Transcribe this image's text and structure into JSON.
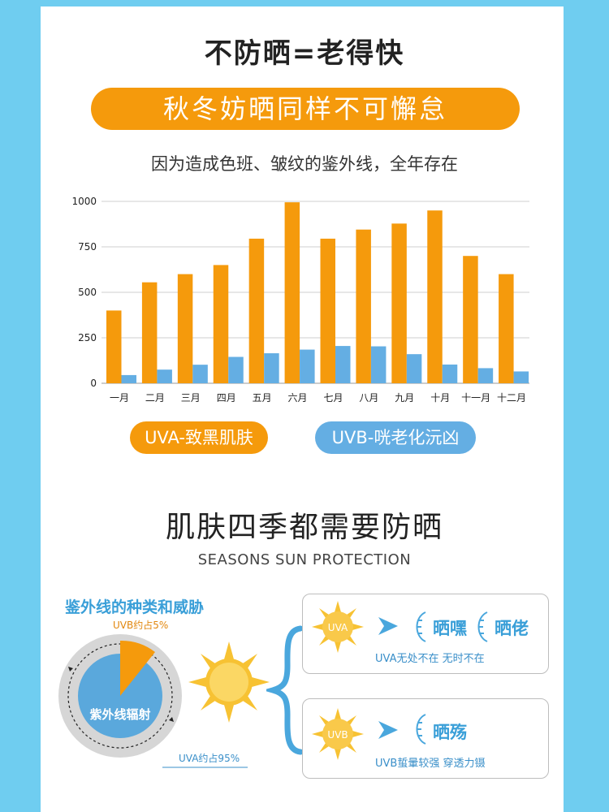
{
  "header": {
    "title": "不防晒=老得快",
    "banner": "秋冬妨晒同样不可懈怠",
    "subtitle": "因为造成色班、皱纹的鉴外线，全年存在"
  },
  "legend": {
    "uva": "UVA-致黑肌肤",
    "uvb": "UVB-咣老化沅凶"
  },
  "section2": {
    "title": "肌肤四季都需要防晒",
    "subtitle": "SEASONS SUN PROTECTION",
    "heading": "鉴外线的种类和威胁"
  },
  "pie": {
    "uvb_label": "UVB约占5%",
    "uva_label": "UVA约占95%",
    "center_label": "紫外线辐射",
    "uvb_share": 5,
    "uva_share": 95
  },
  "uva_box": {
    "sun_label": "UVA",
    "effect1": "晒嘿",
    "effect2": "晒佬",
    "caption": "UVA无处不在 无时不在"
  },
  "uvb_box": {
    "sun_label": "UVB",
    "effect1": "晒殇",
    "caption": "UVB蜇暈较强 穿透力镊"
  },
  "colors": {
    "uva": "#f59a0c",
    "uvb": "#64aee3",
    "frame": "#6fcdf0",
    "accent_text": "#3a9fd8"
  },
  "chart_data": {
    "type": "bar",
    "categories": [
      "一月",
      "二月",
      "三月",
      "四月",
      "五月",
      "六月",
      "七月",
      "八月",
      "九月",
      "十月",
      "十一月",
      "十二月"
    ],
    "series": [
      {
        "name": "UVA-致黑肌肤",
        "values": [
          400,
          555,
          600,
          650,
          795,
          995,
          795,
          845,
          878,
          950,
          700,
          600
        ]
      },
      {
        "name": "UVB-咣老化沅凶",
        "values": [
          45,
          75,
          102,
          145,
          165,
          185,
          205,
          203,
          160,
          103,
          83,
          65
        ]
      }
    ],
    "yticks": [
      0,
      250,
      500,
      750,
      1000
    ],
    "ylim": [
      0,
      1000
    ],
    "grid": true,
    "legend_position": "bottom"
  }
}
